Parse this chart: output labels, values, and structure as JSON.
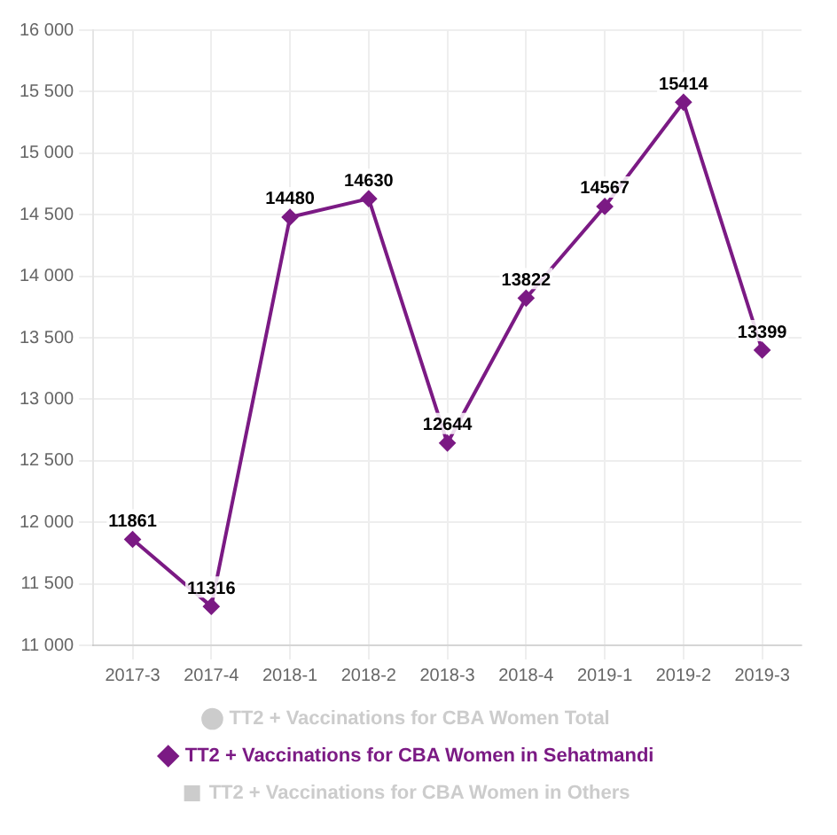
{
  "chart_data": {
    "type": "line",
    "categories": [
      "2017-3",
      "2017-4",
      "2018-1",
      "2018-2",
      "2018-3",
      "2018-4",
      "2019-1",
      "2019-2",
      "2019-3"
    ],
    "series": [
      {
        "name": "TT2 + Vaccinations for CBA Women Total",
        "color": "#cccccc",
        "marker": "circle",
        "values": [
          null,
          null,
          null,
          null,
          null,
          null,
          null,
          null,
          null
        ]
      },
      {
        "name": "TT2 + Vaccinations for CBA Women in Sehatmandi",
        "color": "#7b1a84",
        "marker": "diamond",
        "values": [
          11861,
          11316,
          14480,
          14630,
          12644,
          13822,
          14567,
          15414,
          13399
        ]
      },
      {
        "name": "TT2 + Vaccinations for CBA Women in Others",
        "color": "#cccccc",
        "marker": "square",
        "values": [
          null,
          null,
          null,
          null,
          null,
          null,
          null,
          null,
          null
        ]
      }
    ],
    "ylim": [
      11000,
      16000
    ],
    "yticks": [
      {
        "value": 11000,
        "label": "11 000"
      },
      {
        "value": 11500,
        "label": "11 500"
      },
      {
        "value": 12000,
        "label": "12 000"
      },
      {
        "value": 12500,
        "label": "12 500"
      },
      {
        "value": 13000,
        "label": "13 000"
      },
      {
        "value": 13500,
        "label": "13 500"
      },
      {
        "value": 14000,
        "label": "14 000"
      },
      {
        "value": 14500,
        "label": "14 500"
      },
      {
        "value": 15000,
        "label": "15 000"
      },
      {
        "value": 15500,
        "label": "15 500"
      },
      {
        "value": 16000,
        "label": "16 000"
      }
    ],
    "grid": true,
    "legend": "bottom",
    "data_labels": true,
    "line_style": "solid"
  }
}
